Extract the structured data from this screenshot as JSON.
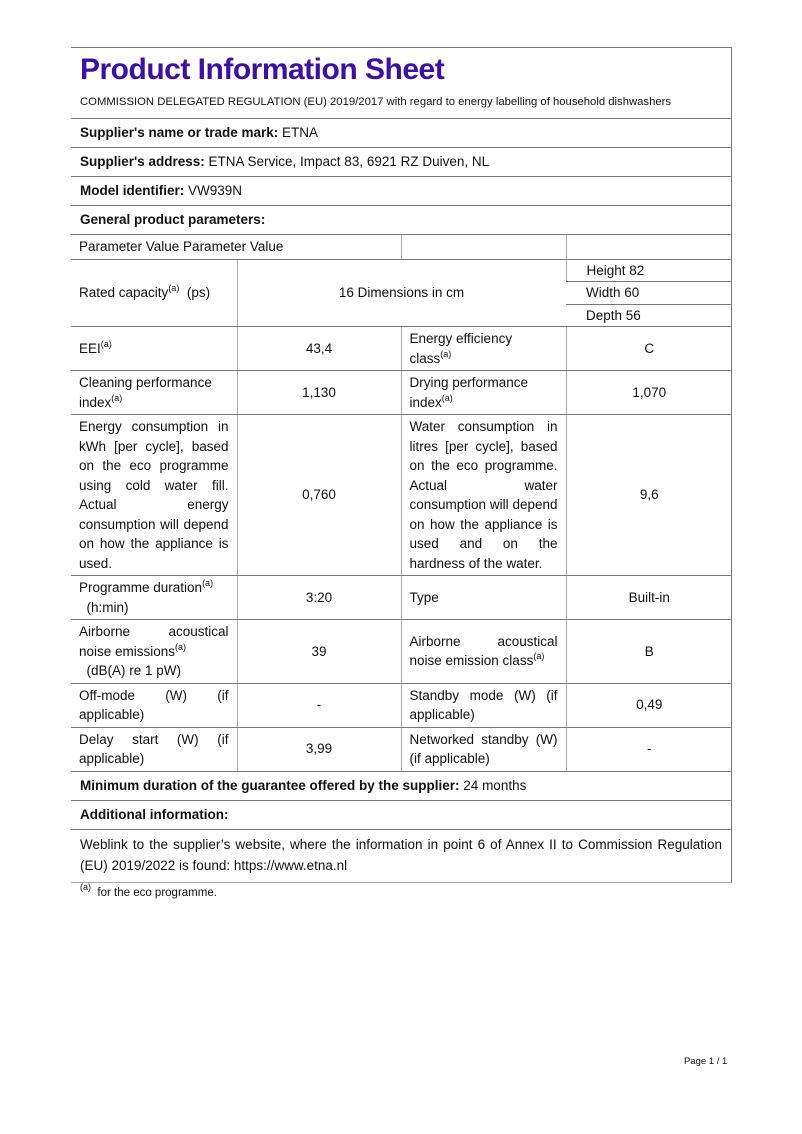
{
  "title": "Product Information Sheet",
  "title_color": "#3d0fa8",
  "regulation": "COMMISSION DELEGATED REGULATION (EU) 2019/2017 with regard to energy labelling of household dishwashers",
  "supplier_name": {
    "label": "Supplier's name or trade mark:",
    "value": "ETNA"
  },
  "supplier_address": {
    "label": "Supplier's address:",
    "value": "ETNA Service, Impact 83, 6921 RZ Duiven, NL"
  },
  "model": {
    "label": "Model identifier:",
    "value": "VW939N"
  },
  "general": {
    "label": "General product parameters:"
  },
  "table": {
    "header": "Parameter Value Parameter Value",
    "sup": "(a)",
    "rated_capacity": {
      "label": "Rated capacity",
      "unit": "(ps)",
      "value": "16",
      "dim_label": "Dimensions in cm",
      "height": "Height 82",
      "width": "Width 60",
      "depth": "Depth 56"
    },
    "eei": {
      "label": "EEI",
      "value": "43,4",
      "p2": "Energy efficiency class",
      "v2": "C"
    },
    "cleaning": {
      "label": "Cleaning performance index",
      "value": "1,130",
      "p2": "Drying performance index",
      "v2": "1,070"
    },
    "energy": {
      "label": "Energy consumption in kWh [per cycle], based on the eco programme using cold water fill. Actual energy consumption will depend on how the appliance is used.",
      "value": "0,760",
      "p2": "Water consumption in litres [per cycle], based on the eco programme. Actual water consumption will depend on how the appliance is used and on the hardness of the water.",
      "v2": "9,6"
    },
    "duration": {
      "label": "Programme duration",
      "unit": "(h:min)",
      "value": "3:20",
      "p2": "Type",
      "v2": "Built-in"
    },
    "noise": {
      "label": "Airborne acoustical noise emissions",
      "unit": "(dB(A) re 1 pW)",
      "value": "39",
      "p2": "Airborne acoustical noise emission class",
      "v2": "B"
    },
    "offmode": {
      "label": "Off-mode (W) (if applicable)",
      "value": "-",
      "p2": "Standby mode (W) (if applicable)",
      "v2": "0,49"
    },
    "delay": {
      "label": "Delay start (W) (if applicable)",
      "value": "3,99",
      "p2": "Networked standby (W) (if applicable)",
      "v2": "-"
    }
  },
  "guarantee": {
    "label": "Minimum duration of the guarantee offered by the supplier:",
    "value": "24 months"
  },
  "additional": {
    "label": "Additional information:"
  },
  "weblink": "Weblink to the supplier’s website, where the information in point 6 of Annex II to Commission Regulation (EU) 2019/2022 is found:  https://www.etna.nl",
  "footnote": {
    "mark": "(a)",
    "text": "for the eco programme."
  },
  "page_number": "Page 1 / 1"
}
